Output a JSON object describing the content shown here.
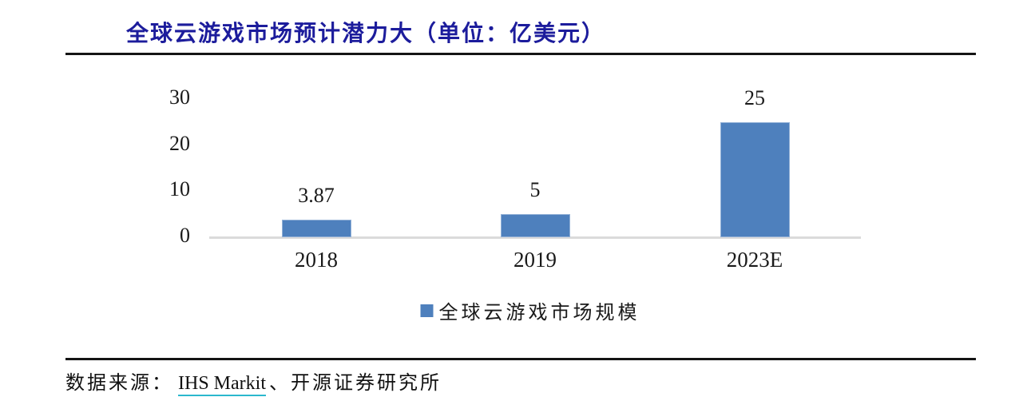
{
  "header": {
    "title": "全球云游戏市场预计潜力大（单位：亿美元）",
    "title_color": "#1C1C9C"
  },
  "chart_data": {
    "type": "bar",
    "title": "全球云游戏市场预计潜力大（单位：亿美元）",
    "unit": "亿美元",
    "categories": [
      "2018",
      "2019",
      "2023E"
    ],
    "values": [
      3.87,
      5,
      25
    ],
    "value_labels": [
      "3.87",
      "5",
      "25"
    ],
    "y_ticks": [
      30,
      20,
      10,
      0
    ],
    "ylim": [
      0,
      30
    ],
    "grid": false,
    "legend_position": "bottom",
    "series": [
      {
        "name": "全球云游戏市场规模",
        "color": "#4E80BD",
        "values": [
          3.87,
          5,
          25
        ]
      }
    ]
  },
  "legend": {
    "label": "全球云游戏市场规模",
    "marker_color": "#4E80BD"
  },
  "footer": {
    "prefix": "数据来源：",
    "source_link": "IHS Markit",
    "suffix": "、开源证券研究所",
    "link_underline_color": "#2BB8CE"
  },
  "colors": {
    "bar": "#4E80BD",
    "axis_line": "#DBDBDB",
    "divider": "#141414"
  }
}
